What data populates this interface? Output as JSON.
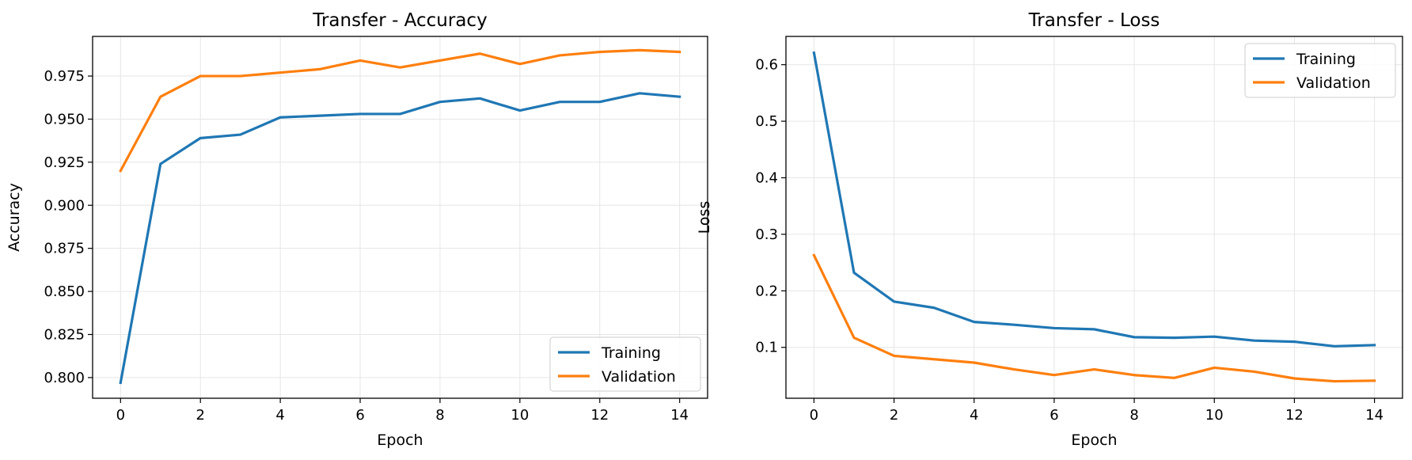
{
  "colors": {
    "training": "#1f77b4",
    "validation": "#ff7f0e"
  },
  "chart_data": [
    {
      "type": "line",
      "title": "Transfer - Accuracy",
      "xlabel": "Epoch",
      "ylabel": "Accuracy",
      "xlim": [
        -0.7,
        14.7
      ],
      "ylim": [
        0.788,
        0.998
      ],
      "xticks": [
        0,
        2,
        4,
        6,
        8,
        10,
        12,
        14
      ],
      "xtick_labels": [
        "0",
        "2",
        "4",
        "6",
        "8",
        "10",
        "12",
        "14"
      ],
      "yticks": [
        0.8,
        0.825,
        0.85,
        0.875,
        0.9,
        0.925,
        0.95,
        0.975
      ],
      "ytick_labels": [
        "0.800",
        "0.825",
        "0.850",
        "0.875",
        "0.900",
        "0.925",
        "0.950",
        "0.975"
      ],
      "grid": true,
      "legend_position": "lower-right",
      "x": [
        0,
        1,
        2,
        3,
        4,
        5,
        6,
        7,
        8,
        9,
        10,
        11,
        12,
        13,
        14
      ],
      "series": [
        {
          "name": "Training",
          "color": "#1f77b4",
          "values": [
            0.797,
            0.924,
            0.939,
            0.941,
            0.951,
            0.952,
            0.953,
            0.953,
            0.96,
            0.962,
            0.955,
            0.96,
            0.96,
            0.965,
            0.963
          ]
        },
        {
          "name": "Validation",
          "color": "#ff7f0e",
          "values": [
            0.92,
            0.963,
            0.975,
            0.975,
            0.977,
            0.979,
            0.984,
            0.98,
            0.984,
            0.988,
            0.982,
            0.987,
            0.989,
            0.99,
            0.989
          ]
        }
      ]
    },
    {
      "type": "line",
      "title": "Transfer - Loss",
      "xlabel": "Epoch",
      "ylabel": "Loss",
      "xlim": [
        -0.7,
        14.7
      ],
      "ylim": [
        0.01,
        0.65
      ],
      "xticks": [
        0,
        2,
        4,
        6,
        8,
        10,
        12,
        14
      ],
      "xtick_labels": [
        "0",
        "2",
        "4",
        "6",
        "8",
        "10",
        "12",
        "14"
      ],
      "yticks": [
        0.1,
        0.2,
        0.3,
        0.4,
        0.5,
        0.6
      ],
      "ytick_labels": [
        "0.1",
        "0.2",
        "0.3",
        "0.4",
        "0.5",
        "0.6"
      ],
      "grid": true,
      "legend_position": "upper-right",
      "x": [
        0,
        1,
        2,
        3,
        4,
        5,
        6,
        7,
        8,
        9,
        10,
        11,
        12,
        13,
        14
      ],
      "series": [
        {
          "name": "Training",
          "color": "#1f77b4",
          "values": [
            0.621,
            0.232,
            0.181,
            0.17,
            0.145,
            0.14,
            0.134,
            0.132,
            0.118,
            0.117,
            0.119,
            0.112,
            0.11,
            0.102,
            0.104
          ]
        },
        {
          "name": "Validation",
          "color": "#ff7f0e",
          "values": [
            0.263,
            0.117,
            0.085,
            0.079,
            0.073,
            0.061,
            0.051,
            0.061,
            0.051,
            0.046,
            0.064,
            0.057,
            0.045,
            0.04,
            0.041
          ]
        }
      ]
    }
  ]
}
